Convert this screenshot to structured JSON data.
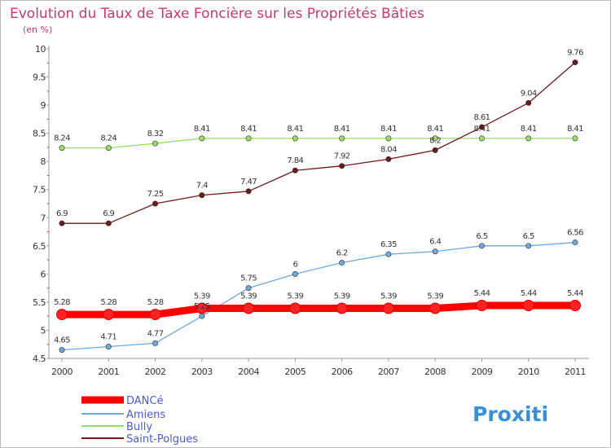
{
  "chart_data": {
    "type": "line",
    "title": "Evolution du Taux de Taxe Foncière sur les Propriétés Bâties",
    "subtitle": "(en %)",
    "xlabel": "",
    "ylabel": "",
    "x": [
      "2000",
      "2001",
      "2002",
      "2003",
      "2004",
      "2005",
      "2006",
      "2007",
      "2008",
      "2009",
      "2010",
      "2011"
    ],
    "ylim": [
      4.5,
      10
    ],
    "yticks": [
      4.5,
      5,
      5.5,
      6,
      6.5,
      7,
      7.5,
      8,
      8.5,
      9,
      9.5,
      10
    ],
    "ytick_labels": [
      "4.5",
      "5",
      "5.5",
      "6",
      "6.5",
      "7",
      "7.5",
      "8",
      "8.5",
      "9",
      "9.5",
      "10"
    ],
    "grid": false,
    "legend_position": "bottom-left",
    "series": [
      {
        "name": "DANCé",
        "color": "#ff0000",
        "values": [
          5.28,
          5.28,
          5.28,
          5.39,
          5.39,
          5.39,
          5.39,
          5.39,
          5.39,
          5.44,
          5.44,
          5.44
        ],
        "labels": [
          "5.28",
          "5.28",
          "5.28",
          "5.39",
          "5.39",
          "5.39",
          "5.39",
          "5.39",
          "5.39",
          "5.44",
          "5.44",
          "5.44"
        ]
      },
      {
        "name": "Amiens",
        "color": "#6fa8dc",
        "values": [
          4.65,
          4.71,
          4.77,
          5.25,
          5.75,
          6,
          6.2,
          6.35,
          6.4,
          6.5,
          6.5,
          6.56
        ],
        "labels": [
          "4.65",
          "4.71",
          "4.77",
          "5.25",
          "5.75",
          "6",
          "6.2",
          "6.35",
          "6.4",
          "6.5",
          "6.5",
          "6.56"
        ]
      },
      {
        "name": "Bully",
        "color": "#99dd66",
        "values": [
          8.24,
          8.24,
          8.32,
          8.41,
          8.41,
          8.41,
          8.41,
          8.41,
          8.41,
          8.41,
          8.41,
          8.41
        ],
        "labels": [
          "8.24",
          "8.24",
          "8.32",
          "8.41",
          "8.41",
          "8.41",
          "8.41",
          "8.41",
          "8.41",
          "8.41",
          "8.41",
          "8.41"
        ]
      },
      {
        "name": "Saint-Polgues",
        "color": "#6b1a1a",
        "values": [
          6.9,
          6.9,
          7.25,
          7.4,
          7.47,
          7.84,
          7.92,
          8.04,
          8.2,
          8.61,
          9.04,
          9.76
        ],
        "labels": [
          "6.9",
          "6.9",
          "7.25",
          "7.4",
          "7.47",
          "7.84",
          "7.92",
          "8.04",
          "8.2",
          "8.61",
          "9.04",
          "9.76"
        ]
      }
    ]
  },
  "logo": {
    "text": "Proxiti"
  }
}
